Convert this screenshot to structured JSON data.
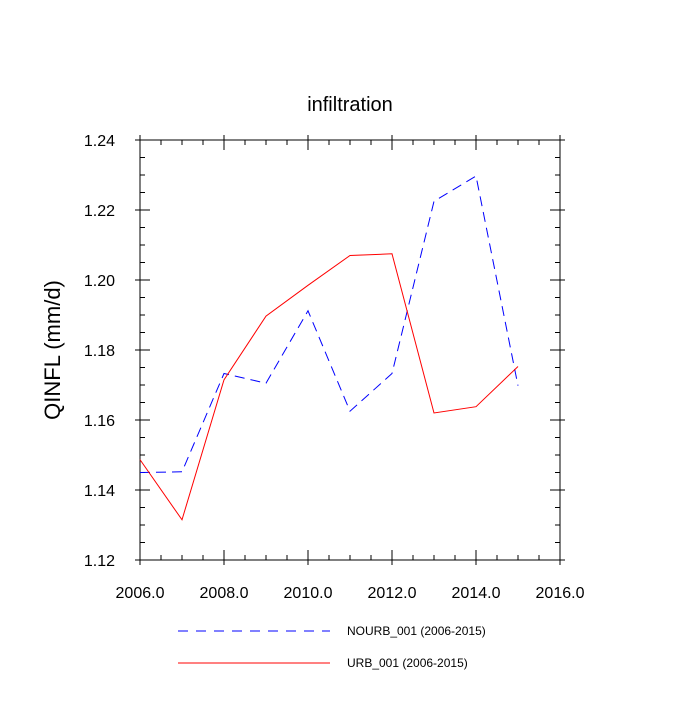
{
  "chart_data": {
    "type": "line",
    "title": "infiltration",
    "xlabel": "",
    "ylabel": "QINFL  (mm/d)",
    "xlim": [
      2006,
      2016
    ],
    "ylim": [
      1.12,
      1.24
    ],
    "x_ticks": [
      2006,
      2008,
      2010,
      2012,
      2014,
      2016
    ],
    "x_tick_labels": [
      "2006.0",
      "2008.0",
      "2010.0",
      "2012.0",
      "2014.0",
      "2016.0"
    ],
    "y_ticks": [
      1.12,
      1.14,
      1.16,
      1.18,
      1.2,
      1.22,
      1.24
    ],
    "y_tick_labels": [
      "1.12",
      "1.14",
      "1.16",
      "1.18",
      "1.20",
      "1.22",
      "1.24"
    ],
    "x": [
      2006,
      2007,
      2008,
      2009,
      2010,
      2011,
      2012,
      2013,
      2014,
      2015
    ],
    "series": [
      {
        "name": "NOURB_001 (2006-2015)",
        "color": "#0000ff",
        "dash": "dashed",
        "values": [
          1.145,
          1.1452,
          1.1733,
          1.1705,
          1.1912,
          1.1625,
          1.1733,
          1.2225,
          1.2297,
          1.1698
        ]
      },
      {
        "name": "URB_001 (2006-2015)",
        "color": "#ff0000",
        "dash": "solid",
        "values": [
          1.1487,
          1.1315,
          1.1715,
          1.1897,
          1.1985,
          1.207,
          1.2075,
          1.162,
          1.1638,
          1.1753
        ]
      }
    ],
    "legend_position": "bottom"
  }
}
